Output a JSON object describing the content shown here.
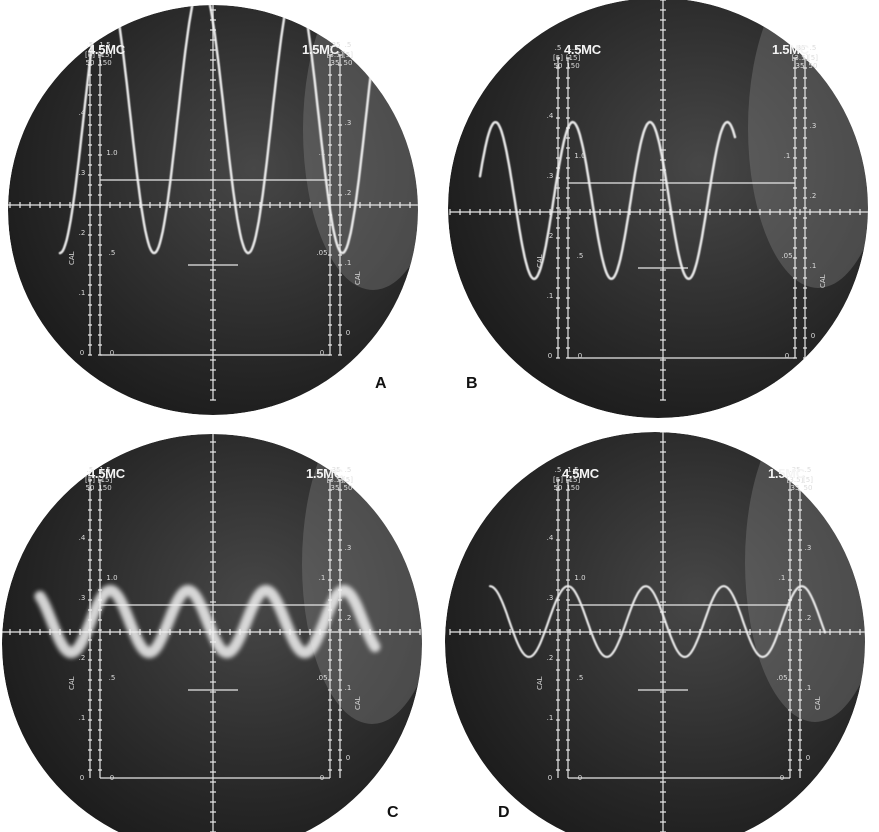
{
  "figure": {
    "panels": [
      {
        "id": "A",
        "letter": "A",
        "left_label": "4.5MC",
        "right_label": "1.5MC",
        "left_scale": {
          "top": ".5",
          "brackets": [
            "5",
            "50"
          ],
          "inner": "1.5",
          "inner_brackets": [
            "15",
            "150"
          ],
          "ticks": [
            ".4",
            ".3",
            ".2",
            ".1",
            "0"
          ],
          "inner_ticks": [
            "1.0",
            ".5",
            "0"
          ]
        },
        "right_scale": {
          "top": ".35",
          "brackets": [
            "3.5",
            "35"
          ],
          "outer": ".5",
          "outer_brackets": [
            "5",
            "50"
          ],
          "ticks": [
            ".3",
            ".2",
            ".1",
            "0"
          ],
          "inner_ticks": [
            ".1",
            ".05",
            "0"
          ]
        },
        "cal_label": "CAL",
        "trace": {
          "kind": "large",
          "amplitude": 0.95,
          "baseline": 0.78,
          "cycles": 3.4,
          "phase": 0.0,
          "thickness": 2.5
        },
        "glow": "clean"
      },
      {
        "id": "B",
        "letter": "B",
        "left_label": "4.5MC",
        "right_label": "1.5MC",
        "left_scale": {
          "top": ".5",
          "brackets": [
            "5",
            "50"
          ],
          "inner": "1.5",
          "inner_brackets": [
            "15",
            "150"
          ],
          "ticks": [
            ".4",
            ".3",
            ".2",
            ".1",
            "0"
          ],
          "inner_ticks": [
            "1.0",
            ".5",
            "0"
          ]
        },
        "right_scale": {
          "top": ".35",
          "brackets": [
            "3.5",
            "35"
          ],
          "outer": ".5",
          "outer_brackets": [
            "5",
            "50"
          ],
          "ticks": [
            ".3",
            ".2",
            ".1",
            "0"
          ],
          "inner_ticks": [
            ".1",
            ".05",
            "0"
          ]
        },
        "cal_label": "CAL",
        "trace": {
          "kind": "medium",
          "amplitude": 0.55,
          "baseline": 0.5,
          "cycles": 3.3,
          "phase": 0.3,
          "thickness": 2.5
        },
        "glow": "clean"
      },
      {
        "id": "C",
        "letter": "C",
        "left_label": "4.5MC",
        "right_label": "1.5MC",
        "left_scale": {
          "top": ".5",
          "brackets": [
            "5",
            "50"
          ],
          "inner": "1.5",
          "inner_brackets": [
            "15",
            "150"
          ],
          "ticks": [
            ".4",
            ".3",
            ".2",
            ".1",
            "0"
          ],
          "inner_ticks": [
            "1.0",
            ".5",
            "0"
          ]
        },
        "right_scale": {
          "top": ".35",
          "brackets": [
            "3.5",
            "35"
          ],
          "outer": ".5",
          "outer_brackets": [
            "5",
            "50"
          ],
          "ticks": [
            ".3",
            ".2",
            ".1",
            "0"
          ],
          "inner_ticks": [
            ".1",
            ".05",
            "0"
          ]
        },
        "cal_label": "CAL",
        "trace": {
          "kind": "small",
          "amplitude": 0.22,
          "baseline": 0.5,
          "cycles": 4.3,
          "phase": 0.6,
          "thickness": 11
        },
        "glow": "fuzzy"
      },
      {
        "id": "D",
        "letter": "D",
        "left_label": "4.5MC",
        "right_label": "1.5MC",
        "left_scale": {
          "top": ".5",
          "brackets": [
            "5",
            "50"
          ],
          "inner": "1.5",
          "inner_brackets": [
            "15",
            "150"
          ],
          "ticks": [
            ".4",
            ".3",
            ".2",
            ".1",
            "0"
          ],
          "inner_ticks": [
            "1.0",
            ".5",
            "0"
          ]
        },
        "right_scale": {
          "top": ".35",
          "brackets": [
            "3.5",
            "35"
          ],
          "outer": ".5",
          "outer_brackets": [
            "5",
            "50"
          ],
          "ticks": [
            ".3",
            ".2",
            ".1",
            "0"
          ],
          "inner_ticks": [
            ".1",
            ".05",
            "0"
          ]
        },
        "cal_label": "CAL",
        "trace": {
          "kind": "small",
          "amplitude": 0.25,
          "baseline": 0.5,
          "cycles": 4.3,
          "phase": 0.5,
          "thickness": 2.2
        },
        "glow": "clean"
      }
    ]
  },
  "colors": {
    "page_background": "#ffffff",
    "screen_dark": "#262626",
    "screen_mid": "#474747",
    "screen_light": "#8a8a8a",
    "graticule": "#e6e6e6",
    "trace": "#f2f2f2",
    "letter": "#111111"
  }
}
